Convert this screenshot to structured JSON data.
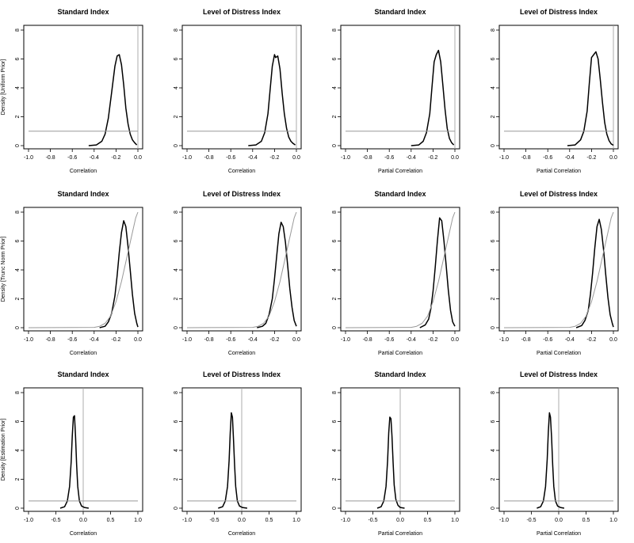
{
  "chart_data": [
    {
      "type": "line",
      "title": "Standard Index",
      "xlabel": "Correlation",
      "ylabel": "Density [Uniform Prior]",
      "xlim": [
        -1.0,
        0.0
      ],
      "ylim": [
        0,
        8
      ],
      "xticks": [
        "-1.0",
        "-0.8",
        "-0.6",
        "-0.4",
        "-0.2",
        "0.0"
      ],
      "yticks": [
        "0",
        "2",
        "4",
        "6",
        "8"
      ],
      "series": [
        {
          "kind": "posterior",
          "x": [
            -0.45,
            -0.38,
            -0.33,
            -0.3,
            -0.27,
            -0.24,
            -0.21,
            -0.19,
            -0.17,
            -0.15,
            -0.13,
            -0.11,
            -0.09,
            -0.07,
            -0.05,
            -0.03,
            -0.01
          ],
          "y": [
            0,
            0.05,
            0.3,
            0.8,
            1.9,
            3.7,
            5.5,
            6.2,
            6.3,
            5.6,
            4.2,
            2.6,
            1.5,
            0.8,
            0.4,
            0.2,
            0.05
          ]
        },
        {
          "kind": "prior",
          "x": [
            -1.0,
            0.0
          ],
          "y": [
            1,
            1
          ]
        }
      ],
      "vline": 0.0
    },
    {
      "type": "line",
      "title": "Level of Distress Index",
      "xlabel": "Correlation",
      "ylabel": "",
      "xlim": [
        -1.0,
        0.0
      ],
      "ylim": [
        0,
        8
      ],
      "xticks": [
        "-1.0",
        "-0.8",
        "-0.6",
        "-0.4",
        "-0.2",
        "0.0"
      ],
      "yticks": [
        "0",
        "2",
        "4",
        "6",
        "8"
      ],
      "series": [
        {
          "kind": "posterior",
          "x": [
            -0.44,
            -0.37,
            -0.32,
            -0.29,
            -0.26,
            -0.24,
            -0.22,
            -0.2,
            -0.19,
            -0.17,
            -0.15,
            -0.13,
            -0.11,
            -0.09,
            -0.07,
            -0.05,
            -0.03,
            -0.01
          ],
          "y": [
            0,
            0.05,
            0.3,
            0.9,
            2.2,
            3.9,
            5.5,
            6.3,
            6.1,
            6.2,
            5.3,
            3.6,
            2.2,
            1.2,
            0.6,
            0.3,
            0.15,
            0.05
          ]
        },
        {
          "kind": "prior",
          "x": [
            -1.0,
            0.0
          ],
          "y": [
            1,
            1
          ]
        }
      ],
      "vline": 0.0
    },
    {
      "type": "line",
      "title": "Standard Index",
      "xlabel": "Partial Correlation",
      "ylabel": "",
      "xlim": [
        -1.0,
        0.0
      ],
      "ylim": [
        0,
        8
      ],
      "xticks": [
        "-1.0",
        "-0.8",
        "-0.6",
        "-0.4",
        "-0.2",
        "0.0"
      ],
      "yticks": [
        "0",
        "2",
        "4",
        "6",
        "8"
      ],
      "series": [
        {
          "kind": "posterior",
          "x": [
            -0.4,
            -0.33,
            -0.29,
            -0.26,
            -0.23,
            -0.21,
            -0.19,
            -0.17,
            -0.15,
            -0.13,
            -0.11,
            -0.09,
            -0.07,
            -0.05,
            -0.03,
            -0.01
          ],
          "y": [
            0,
            0.05,
            0.3,
            0.9,
            2.2,
            4.0,
            5.8,
            6.3,
            6.6,
            5.8,
            4.2,
            2.5,
            1.2,
            0.5,
            0.2,
            0.05
          ]
        },
        {
          "kind": "prior",
          "x": [
            -1.0,
            0.0
          ],
          "y": [
            1,
            1
          ]
        }
      ],
      "vline": 0.0
    },
    {
      "type": "line",
      "title": "Level of Distress Index",
      "xlabel": "Partial Correlation",
      "ylabel": "",
      "xlim": [
        -1.0,
        0.0
      ],
      "ylim": [
        0,
        8
      ],
      "xticks": [
        "-1.0",
        "-0.8",
        "-0.6",
        "-0.4",
        "-0.2",
        "0.0"
      ],
      "yticks": [
        "0",
        "2",
        "4",
        "6",
        "8"
      ],
      "series": [
        {
          "kind": "posterior",
          "x": [
            -0.42,
            -0.35,
            -0.3,
            -0.27,
            -0.24,
            -0.22,
            -0.2,
            -0.18,
            -0.16,
            -0.14,
            -0.12,
            -0.1,
            -0.08,
            -0.06,
            -0.04,
            -0.02,
            0.0
          ],
          "y": [
            0,
            0.05,
            0.4,
            1.0,
            2.4,
            4.3,
            6.1,
            6.3,
            6.5,
            6.0,
            4.6,
            3.0,
            1.6,
            0.8,
            0.35,
            0.12,
            0.03
          ]
        },
        {
          "kind": "prior",
          "x": [
            -1.0,
            0.0
          ],
          "y": [
            1,
            1
          ]
        }
      ],
      "vline": 0.0
    },
    {
      "type": "line",
      "title": "Standard Index",
      "xlabel": "Correlation",
      "ylabel": "Density [Trunc Norm Prior]",
      "xlim": [
        -1.0,
        0.0
      ],
      "ylim": [
        0,
        8
      ],
      "xticks": [
        "-1.0",
        "-0.8",
        "-0.6",
        "-0.4",
        "-0.2",
        "0.0"
      ],
      "yticks": [
        "0",
        "2",
        "4",
        "6",
        "8"
      ],
      "series": [
        {
          "kind": "posterior",
          "x": [
            -0.35,
            -0.3,
            -0.27,
            -0.24,
            -0.21,
            -0.19,
            -0.17,
            -0.15,
            -0.13,
            -0.11,
            -0.09,
            -0.07,
            -0.05,
            -0.03,
            -0.01,
            0.0
          ],
          "y": [
            0,
            0.1,
            0.4,
            1.0,
            2.2,
            3.6,
            5.2,
            6.6,
            7.4,
            7.0,
            5.6,
            4.0,
            2.3,
            1.0,
            0.3,
            0.05
          ]
        },
        {
          "kind": "prior",
          "x": [
            -1.0,
            -0.4,
            -0.35,
            -0.3,
            -0.25,
            -0.2,
            -0.15,
            -0.1,
            -0.05,
            -0.02,
            0.0
          ],
          "y": [
            0,
            0.02,
            0.1,
            0.3,
            0.8,
            1.8,
            3.2,
            4.9,
            6.6,
            7.6,
            8.0
          ]
        }
      ],
      "vline": null
    },
    {
      "type": "line",
      "title": "Level of Distress Index",
      "xlabel": "Correlation",
      "ylabel": "",
      "xlim": [
        -1.0,
        0.0
      ],
      "ylim": [
        0,
        8
      ],
      "xticks": [
        "-1.0",
        "-0.8",
        "-0.6",
        "-0.4",
        "-0.2",
        "0.0"
      ],
      "yticks": [
        "0",
        "2",
        "4",
        "6",
        "8"
      ],
      "series": [
        {
          "kind": "posterior",
          "x": [
            -0.36,
            -0.31,
            -0.28,
            -0.25,
            -0.22,
            -0.2,
            -0.18,
            -0.16,
            -0.14,
            -0.12,
            -0.1,
            -0.08,
            -0.06,
            -0.04,
            -0.02,
            0.0
          ],
          "y": [
            0,
            0.1,
            0.3,
            0.9,
            2.0,
            3.4,
            5.0,
            6.5,
            7.3,
            7.0,
            5.9,
            4.3,
            2.7,
            1.4,
            0.5,
            0.1
          ]
        },
        {
          "kind": "prior",
          "x": [
            -1.0,
            -0.4,
            -0.35,
            -0.3,
            -0.25,
            -0.2,
            -0.15,
            -0.1,
            -0.05,
            -0.02,
            0.0
          ],
          "y": [
            0,
            0.02,
            0.1,
            0.3,
            0.8,
            1.8,
            3.2,
            4.9,
            6.6,
            7.6,
            8.0
          ]
        }
      ],
      "vline": null
    },
    {
      "type": "line",
      "title": "Standard Index",
      "xlabel": "Partial Correlation",
      "ylabel": "",
      "xlim": [
        -1.0,
        0.0
      ],
      "ylim": [
        0,
        8
      ],
      "xticks": [
        "-1.0",
        "-0.8",
        "-0.6",
        "-0.4",
        "-0.2",
        "0.0"
      ],
      "yticks": [
        "0",
        "2",
        "4",
        "6",
        "8"
      ],
      "series": [
        {
          "kind": "posterior",
          "x": [
            -0.32,
            -0.27,
            -0.24,
            -0.22,
            -0.2,
            -0.18,
            -0.16,
            -0.14,
            -0.12,
            -0.1,
            -0.08,
            -0.06,
            -0.04,
            -0.02,
            0.0
          ],
          "y": [
            0,
            0.2,
            0.6,
            1.3,
            2.5,
            4.2,
            6.0,
            7.6,
            7.4,
            6.0,
            4.3,
            2.6,
            1.2,
            0.4,
            0.1
          ]
        },
        {
          "kind": "prior",
          "x": [
            -1.0,
            -0.4,
            -0.35,
            -0.3,
            -0.25,
            -0.2,
            -0.15,
            -0.1,
            -0.05,
            -0.02,
            0.0
          ],
          "y": [
            0,
            0.02,
            0.1,
            0.3,
            0.8,
            1.8,
            3.2,
            4.9,
            6.6,
            7.6,
            8.0
          ]
        }
      ],
      "vline": null
    },
    {
      "type": "line",
      "title": "Level of Distress Index",
      "xlabel": "Partial Correlation",
      "ylabel": "",
      "xlim": [
        -1.0,
        0.0
      ],
      "ylim": [
        0,
        8
      ],
      "xticks": [
        "-1.0",
        "-0.8",
        "-0.6",
        "-0.4",
        "-0.2",
        "0.0"
      ],
      "yticks": [
        "0",
        "2",
        "4",
        "6",
        "8"
      ],
      "series": [
        {
          "kind": "posterior",
          "x": [
            -0.34,
            -0.29,
            -0.26,
            -0.23,
            -0.21,
            -0.19,
            -0.17,
            -0.15,
            -0.13,
            -0.11,
            -0.09,
            -0.07,
            -0.05,
            -0.03,
            -0.01,
            0.0
          ],
          "y": [
            0,
            0.15,
            0.5,
            1.2,
            2.3,
            3.8,
            5.5,
            7.0,
            7.5,
            6.8,
            5.4,
            3.7,
            2.1,
            0.9,
            0.3,
            0.05
          ]
        },
        {
          "kind": "prior",
          "x": [
            -1.0,
            -0.4,
            -0.35,
            -0.3,
            -0.25,
            -0.2,
            -0.15,
            -0.1,
            -0.05,
            -0.02,
            0.0
          ],
          "y": [
            0,
            0.02,
            0.1,
            0.3,
            0.8,
            1.8,
            3.2,
            4.9,
            6.6,
            7.6,
            8.0
          ]
        }
      ],
      "vline": null
    },
    {
      "type": "line",
      "title": "Standard Index",
      "xlabel": "Correlation",
      "ylabel": "Density [Estimation Prior]",
      "xlim": [
        -1.0,
        1.0
      ],
      "ylim": [
        0,
        8
      ],
      "xticks": [
        "-1.0",
        "-0.5",
        "0.0",
        "0.5",
        "1.0"
      ],
      "yticks": [
        "0",
        "2",
        "4",
        "6",
        "8"
      ],
      "series": [
        {
          "kind": "posterior",
          "x": [
            -0.42,
            -0.34,
            -0.29,
            -0.25,
            -0.22,
            -0.2,
            -0.18,
            -0.16,
            -0.14,
            -0.12,
            -0.1,
            -0.07,
            -0.03,
            0.02,
            0.1
          ],
          "y": [
            0,
            0.1,
            0.5,
            1.5,
            3.2,
            5.0,
            6.3,
            6.4,
            5.0,
            3.0,
            1.5,
            0.5,
            0.15,
            0.05,
            0
          ]
        },
        {
          "kind": "prior",
          "x": [
            -1.0,
            1.0
          ],
          "y": [
            0.5,
            0.5
          ]
        }
      ],
      "vline": 0.0
    },
    {
      "type": "line",
      "title": "Level of Distress Index",
      "xlabel": "Correlation",
      "ylabel": "",
      "xlim": [
        -1.0,
        1.0
      ],
      "ylim": [
        0,
        8
      ],
      "xticks": [
        "-1.0",
        "-0.5",
        "0.0",
        "0.5",
        "1.0"
      ],
      "yticks": [
        "0",
        "2",
        "4",
        "6",
        "8"
      ],
      "series": [
        {
          "kind": "posterior",
          "x": [
            -0.43,
            -0.35,
            -0.3,
            -0.26,
            -0.23,
            -0.21,
            -0.19,
            -0.17,
            -0.15,
            -0.13,
            -0.11,
            -0.08,
            -0.04,
            0.01,
            0.1
          ],
          "y": [
            0,
            0.1,
            0.5,
            1.5,
            3.3,
            5.2,
            6.6,
            6.3,
            4.8,
            3.0,
            1.5,
            0.5,
            0.15,
            0.05,
            0
          ]
        },
        {
          "kind": "prior",
          "x": [
            -1.0,
            1.0
          ],
          "y": [
            0.5,
            0.5
          ]
        }
      ],
      "vline": 0.0
    },
    {
      "type": "line",
      "title": "Standard Index",
      "xlabel": "Partial Correlation",
      "ylabel": "",
      "xlim": [
        -1.0,
        1.0
      ],
      "ylim": [
        0,
        8
      ],
      "xticks": [
        "-1.0",
        "-0.5",
        "0.0",
        "0.5",
        "1.0"
      ],
      "yticks": [
        "0",
        "2",
        "4",
        "6",
        "8"
      ],
      "series": [
        {
          "kind": "posterior",
          "x": [
            -0.42,
            -0.35,
            -0.3,
            -0.26,
            -0.23,
            -0.21,
            -0.19,
            -0.17,
            -0.15,
            -0.13,
            -0.11,
            -0.08,
            -0.04,
            0.0,
            0.08
          ],
          "y": [
            0,
            0.1,
            0.5,
            1.5,
            3.3,
            5.2,
            6.3,
            6.2,
            5.0,
            3.2,
            1.6,
            0.6,
            0.2,
            0.05,
            0
          ]
        },
        {
          "kind": "prior",
          "x": [
            -1.0,
            1.0
          ],
          "y": [
            0.5,
            0.5
          ]
        }
      ],
      "vline": 0.0
    },
    {
      "type": "line",
      "title": "Level of Distress Index",
      "xlabel": "Partial Correlation",
      "ylabel": "",
      "xlim": [
        -1.0,
        1.0
      ],
      "ylim": [
        0,
        8
      ],
      "xticks": [
        "-1.0",
        "-0.5",
        "0.0",
        "0.5",
        "1.0"
      ],
      "yticks": [
        "0",
        "2",
        "4",
        "6",
        "8"
      ],
      "series": [
        {
          "kind": "posterior",
          "x": [
            -0.4,
            -0.33,
            -0.28,
            -0.24,
            -0.21,
            -0.19,
            -0.17,
            -0.15,
            -0.13,
            -0.11,
            -0.09,
            -0.06,
            -0.02,
            0.03,
            0.1
          ],
          "y": [
            0,
            0.1,
            0.5,
            1.5,
            3.4,
            5.3,
            6.6,
            6.3,
            4.9,
            3.0,
            1.5,
            0.5,
            0.15,
            0.05,
            0
          ]
        },
        {
          "kind": "prior",
          "x": [
            -1.0,
            1.0
          ],
          "y": [
            0.5,
            0.5
          ]
        }
      ],
      "vline": 0.0
    }
  ]
}
